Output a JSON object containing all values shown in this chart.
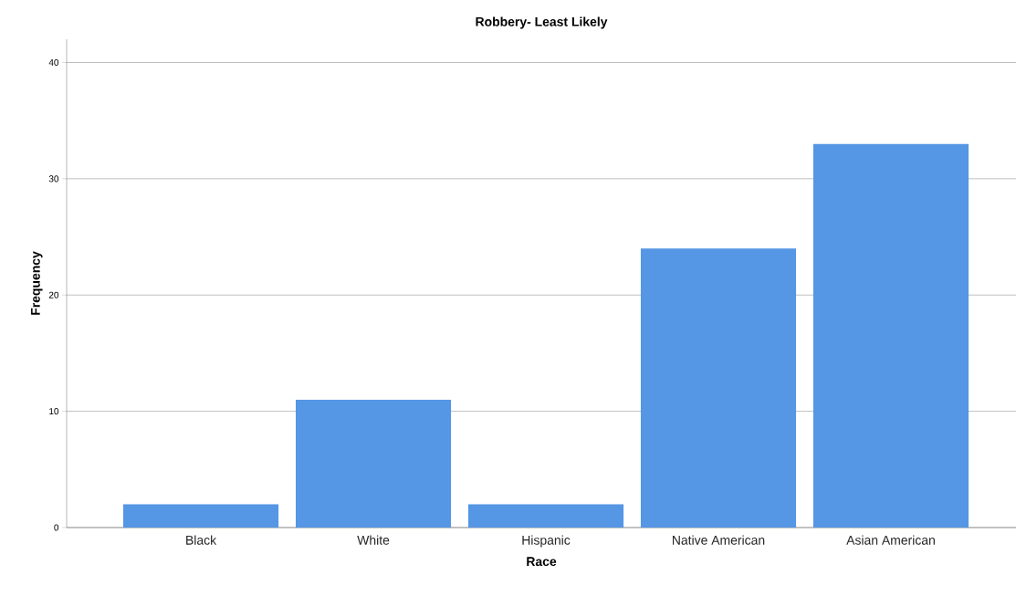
{
  "chart_data": {
    "type": "bar",
    "title": "Robbery- Least Likely",
    "xlabel": "Race",
    "ylabel": "Frequency",
    "categories": [
      "Black",
      "White",
      "Hispanic",
      "Native American",
      "Asian American"
    ],
    "values": [
      2,
      11,
      2,
      24,
      33
    ],
    "color": "#5596e5",
    "ylim": [
      0,
      42
    ],
    "yticks": [
      0,
      10,
      20,
      30,
      40
    ],
    "grid": "y"
  }
}
